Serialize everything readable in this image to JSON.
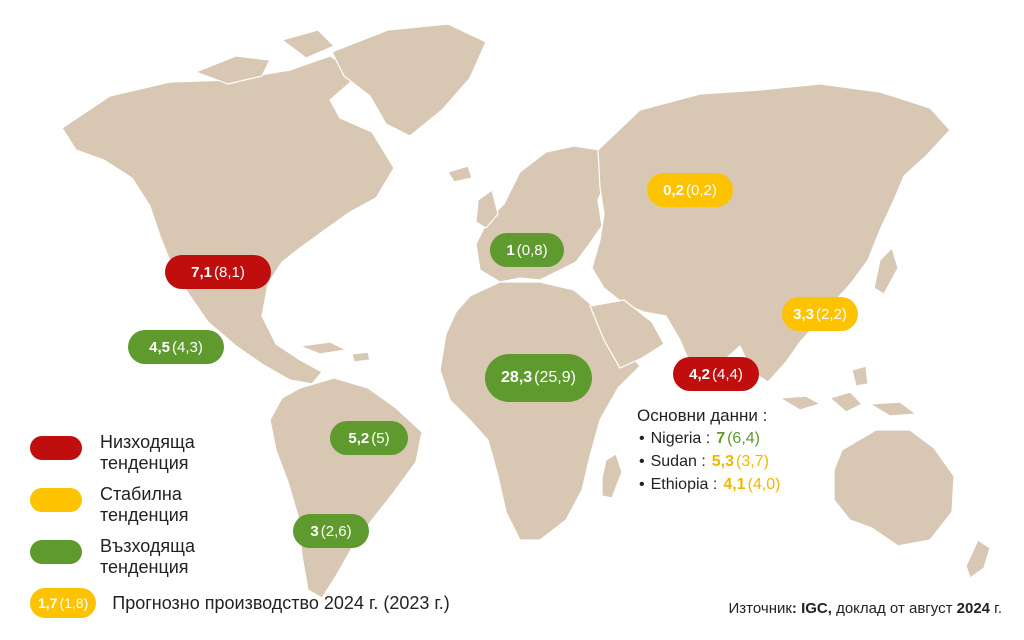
{
  "colors": {
    "land": "#d8c7b2",
    "decreasing": "#c00d0d",
    "stable": "#fdc300",
    "increasing": "#5e9a2d"
  },
  "markers": [
    {
      "region": "usa",
      "value": "7,1",
      "previous": "(8,1)",
      "trend": "decreasing"
    },
    {
      "region": "mexico",
      "value": "4,5",
      "previous": "(4,3)",
      "trend": "increasing"
    },
    {
      "region": "brazil",
      "value": "5,2",
      "previous": "(5)",
      "trend": "increasing"
    },
    {
      "region": "argentina",
      "value": "3",
      "previous": "(2,6)",
      "trend": "increasing"
    },
    {
      "region": "europe",
      "value": "1",
      "previous": "(0,8)",
      "trend": "increasing"
    },
    {
      "region": "russia",
      "value": "0,2",
      "previous": "(0,2)",
      "trend": "stable"
    },
    {
      "region": "china",
      "value": "3,3",
      "previous": "(2,2)",
      "trend": "stable"
    },
    {
      "region": "india",
      "value": "4,2",
      "previous": "(4,4)",
      "trend": "decreasing"
    },
    {
      "region": "africa",
      "value": "28,3",
      "previous": "(25,9)",
      "trend": "increasing"
    }
  ],
  "legend": {
    "decreasing_label": "Низходяща тенденция",
    "stable_label": "Стабилна тенденция",
    "increasing_label": "Възходяща тенденция",
    "forecast_example_value": "1,7",
    "forecast_example_previous": "(1,8)",
    "forecast_label": "Прогнозно производство 2024 г. (2023 г.)"
  },
  "notes": {
    "title": "Основни данни :",
    "items": [
      {
        "country": "Nigeria :",
        "value": "7",
        "previous": "(6,4)",
        "trend": "increasing"
      },
      {
        "country": "Sudan :",
        "value": "5,3",
        "previous": "(3,7)",
        "trend": "stable"
      },
      {
        "country": "Ethiopia :",
        "value": "4,1",
        "previous": "(4,0)",
        "trend": "stable"
      }
    ]
  },
  "source": {
    "prefix": "Източник",
    "org": ": IGC,",
    "text": " доклад от август ",
    "year": "2024",
    "suffix": " г."
  }
}
